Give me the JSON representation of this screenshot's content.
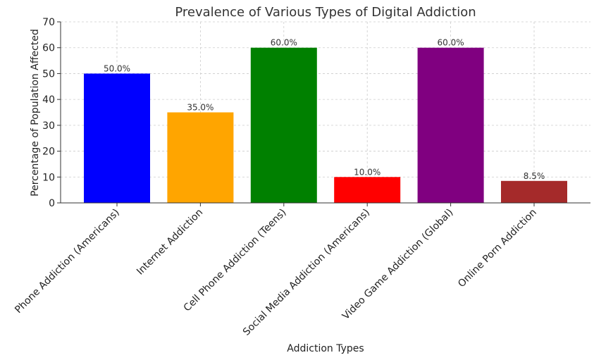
{
  "chart_data": {
    "type": "bar",
    "title": "Prevalence of Various Types of Digital Addiction",
    "xlabel": "Addiction Types",
    "ylabel": "Percentage of Population Affected",
    "ylim": [
      0,
      70
    ],
    "yticks": [
      0,
      10,
      20,
      30,
      40,
      50,
      60,
      70
    ],
    "grid": true,
    "categories": [
      "Phone Addiction (Americans)",
      "Internet Addiction",
      "Cell Phone Addiction (Teens)",
      "Social Media Addiction (Americans)",
      "Video Game Addiction (Global)",
      "Online Porn Addiction"
    ],
    "values": [
      50.0,
      35.0,
      60.0,
      10.0,
      60.0,
      8.5
    ],
    "data_labels": [
      "50.0%",
      "35.0%",
      "60.0%",
      "10.0%",
      "60.0%",
      "8.5%"
    ],
    "colors": [
      "#0000ff",
      "#ffa500",
      "#008000",
      "#ff0000",
      "#800080",
      "#a52a2a"
    ]
  }
}
